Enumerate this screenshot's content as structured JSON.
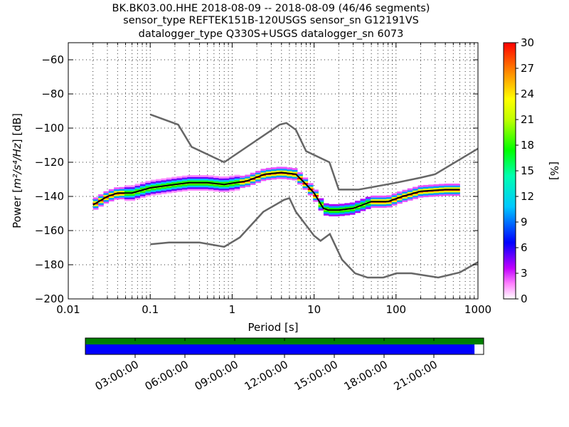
{
  "chart_data": {
    "type": "heatmap",
    "title_lines": [
      "BK.BK03.00.HHE   2018-08-09 -- 2018-08-09  (46/46 segments)",
      "sensor_type REFTEK151B-120USGS sensor_sn G12191VS",
      "datalogger_type Q330S+USGS datalogger_sn 6073"
    ],
    "xlabel": "Period [s]",
    "ylabel_prefix": "Power [",
    "ylabel_math": "m²/s⁴/Hz",
    "ylabel_suffix": "] [dB]",
    "x_scale": "log",
    "xlim": [
      0.01,
      1000
    ],
    "ylim": [
      -200,
      -50
    ],
    "x_ticks": [
      {
        "v": 0.01,
        "label": "0.01"
      },
      {
        "v": 0.1,
        "label": "0.1"
      },
      {
        "v": 1,
        "label": "1"
      },
      {
        "v": 10,
        "label": "10"
      },
      {
        "v": 100,
        "label": "100"
      },
      {
        "v": 1000,
        "label": "1000"
      }
    ],
    "y_ticks": [
      {
        "v": -60,
        "label": "−60"
      },
      {
        "v": -80,
        "label": "−80"
      },
      {
        "v": -100,
        "label": "−100"
      },
      {
        "v": -120,
        "label": "−120"
      },
      {
        "v": -140,
        "label": "−140"
      },
      {
        "v": -160,
        "label": "−160"
      },
      {
        "v": -180,
        "label": "−180"
      },
      {
        "v": -200,
        "label": "−200"
      }
    ],
    "grid": true,
    "colorbar": {
      "label": "[%]",
      "range": [
        0,
        30
      ],
      "ticks": [
        "0",
        "3",
        "6",
        "9",
        "12",
        "15",
        "18",
        "21",
        "24",
        "27",
        "30"
      ]
    },
    "noise_model_high": [
      [
        0.1,
        -92
      ],
      [
        0.22,
        -98
      ],
      [
        0.32,
        -111
      ],
      [
        0.8,
        -120
      ],
      [
        3.8,
        -98
      ],
      [
        4.6,
        -97
      ],
      [
        6,
        -101
      ],
      [
        8,
        -113.5
      ],
      [
        15.4,
        -120
      ],
      [
        20,
        -136
      ],
      [
        35,
        -136
      ],
      [
        100,
        -132
      ],
      [
        200,
        -129
      ],
      [
        300,
        -127
      ],
      [
        1000,
        -112
      ]
    ],
    "noise_model_low": [
      [
        0.1,
        -168
      ],
      [
        0.17,
        -167
      ],
      [
        0.4,
        -167
      ],
      [
        0.8,
        -169.5
      ],
      [
        1.24,
        -164
      ],
      [
        2.4,
        -149
      ],
      [
        4.3,
        -142
      ],
      [
        5,
        -141
      ],
      [
        6,
        -149
      ],
      [
        10,
        -163
      ],
      [
        12,
        -166
      ],
      [
        15.6,
        -162
      ],
      [
        21.9,
        -177
      ],
      [
        31.6,
        -185
      ],
      [
        45,
        -187.5
      ],
      [
        70,
        -187.5
      ],
      [
        101,
        -185
      ],
      [
        154,
        -185
      ],
      [
        328,
        -187.5
      ],
      [
        600,
        -184.5
      ],
      [
        1000,
        -178.5
      ]
    ],
    "mode_curve": [
      [
        0.02,
        -145
      ],
      [
        0.03,
        -140
      ],
      [
        0.04,
        -138
      ],
      [
        0.06,
        -138
      ],
      [
        0.1,
        -135
      ],
      [
        0.2,
        -133
      ],
      [
        0.3,
        -132
      ],
      [
        0.5,
        -132
      ],
      [
        0.8,
        -133
      ],
      [
        1.5,
        -131
      ],
      [
        2.5,
        -127
      ],
      [
        4,
        -126
      ],
      [
        6,
        -127
      ],
      [
        8,
        -133
      ],
      [
        10,
        -138
      ],
      [
        13,
        -147
      ],
      [
        15,
        -148
      ],
      [
        20,
        -148
      ],
      [
        30,
        -147
      ],
      [
        50,
        -143
      ],
      [
        80,
        -143
      ],
      [
        120,
        -140
      ],
      [
        200,
        -137
      ],
      [
        400,
        -136
      ],
      [
        600,
        -136
      ]
    ],
    "timeline": {
      "tick_labels": [
        "03:00:00",
        "06:00:00",
        "09:00:00",
        "12:00:00",
        "15:00:00",
        "18:00:00",
        "21:00:00"
      ],
      "tick_hours": [
        3,
        6,
        9,
        12,
        15,
        18,
        21
      ],
      "span_hours": 24,
      "data_coverage_fraction": 0.977,
      "top_bar_color": "#007f00",
      "bottom_bar_color": "#0000ff"
    }
  }
}
